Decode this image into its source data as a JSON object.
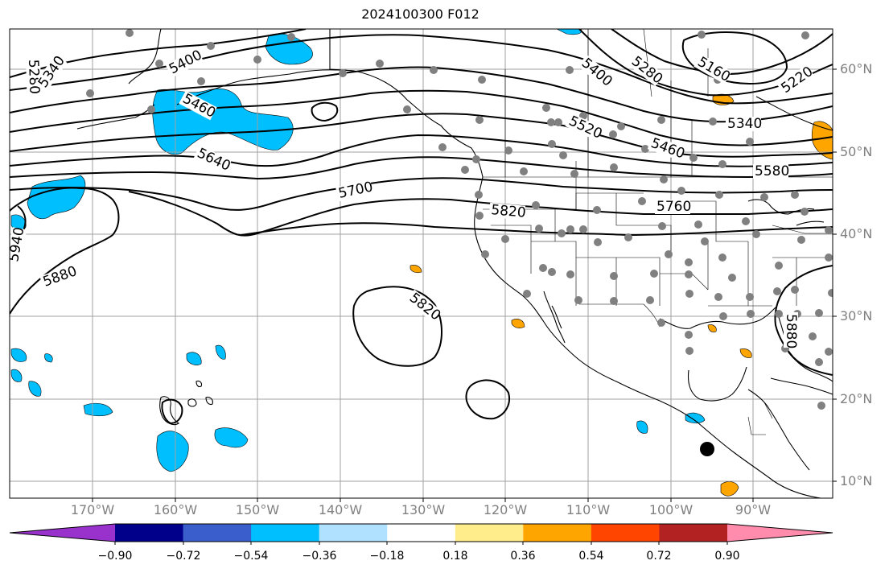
{
  "title": "2024100300 F012",
  "lat_labels": [
    "60°N",
    "50°N",
    "40°N",
    "30°N",
    "20°N",
    "10°N"
  ],
  "lon_labels": [
    "170°W",
    "160°W",
    "150°W",
    "140°W",
    "130°W",
    "120°W",
    "110°W",
    "100°W",
    "90°W"
  ],
  "colorbar": {
    "ticks": [
      "−0.90",
      "−0.72",
      "−0.54",
      "−0.36",
      "−0.18",
      "0.18",
      "0.36",
      "0.54",
      "0.72",
      "0.90"
    ],
    "colors": [
      "#9932CC",
      "#00008B",
      "#3A5FCD",
      "#00BFFF",
      "#B0E2FF",
      "#FFFFFF",
      "#FFEC8B",
      "#FFA500",
      "#FF4500",
      "#B22222",
      "#FF8CAD"
    ]
  },
  "contour_labels": [
    "5280",
    "5340",
    "5400",
    "5460",
    "5640",
    "5700",
    "5820",
    "5880",
    "5940",
    "5820",
    "5400",
    "5280",
    "5160",
    "5220",
    "5520",
    "5460",
    "5340",
    "5580",
    "5760",
    "5880"
  ],
  "colors": {
    "land_line": "#000000",
    "grid": "#a0a0a0",
    "station": "#808080",
    "negative_fill": "#00BFFF",
    "positive_fill": "#FFA500"
  }
}
